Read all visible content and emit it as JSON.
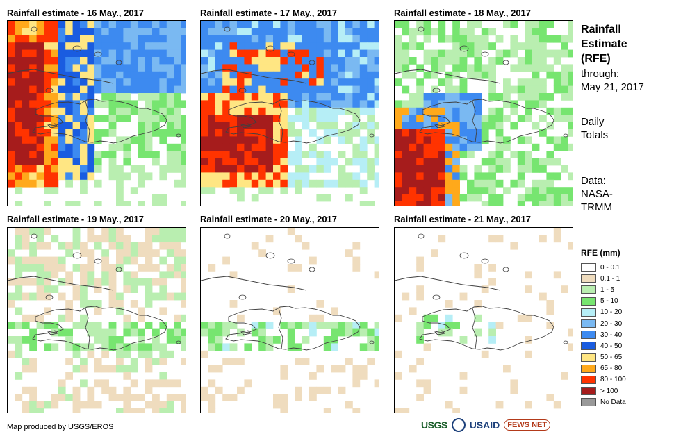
{
  "panels": [
    {
      "title": "Rainfall estimate - 16 May., 2017",
      "day": 16
    },
    {
      "title": "Rainfall estimate - 17 May., 2017",
      "day": 17
    },
    {
      "title": "Rainfall estimate - 18 May., 2017",
      "day": 18
    },
    {
      "title": "Rainfall estimate - 19 May., 2017",
      "day": 19
    },
    {
      "title": "Rainfall estimate - 20 May., 2017",
      "day": 20
    },
    {
      "title": "Rainfall estimate - 21 May., 2017",
      "day": 21
    }
  ],
  "side": {
    "title_lines": [
      "Rainfall",
      "Estimate",
      "(RFE)"
    ],
    "through_label": "through:",
    "through_date": "May 21, 2017",
    "daily": [
      "Daily",
      "Totals"
    ],
    "data_lines": [
      "Data:",
      "NASA-",
      "TRMM"
    ]
  },
  "legend": {
    "title": "RFE (mm)",
    "items": [
      {
        "label": "0 - 0.1",
        "color": "#ffffff"
      },
      {
        "label": "0.1 - 1",
        "color": "#efdcbe"
      },
      {
        "label": "1 - 5",
        "color": "#b9eeb0"
      },
      {
        "label": "5 - 10",
        "color": "#77e570"
      },
      {
        "label": "10 - 20",
        "color": "#b6eef6"
      },
      {
        "label": "20 - 30",
        "color": "#7ab9f2"
      },
      {
        "label": "30 - 40",
        "color": "#3d8af0"
      },
      {
        "label": "40 - 50",
        "color": "#1a5ce0"
      },
      {
        "label": "50 - 65",
        "color": "#ffe683"
      },
      {
        "label": "65 - 80",
        "color": "#ffa91b"
      },
      {
        "label": "80 - 100",
        "color": "#ff3300"
      },
      {
        "label": "> 100",
        "color": "#a61c1c"
      },
      {
        "label": "No Data",
        "color": "#999999"
      }
    ]
  },
  "footer": "Map produced by USGS/EROS",
  "logos": {
    "usgs": "USGS",
    "usaid": "USAID",
    "fews": "FEWS NET"
  }
}
